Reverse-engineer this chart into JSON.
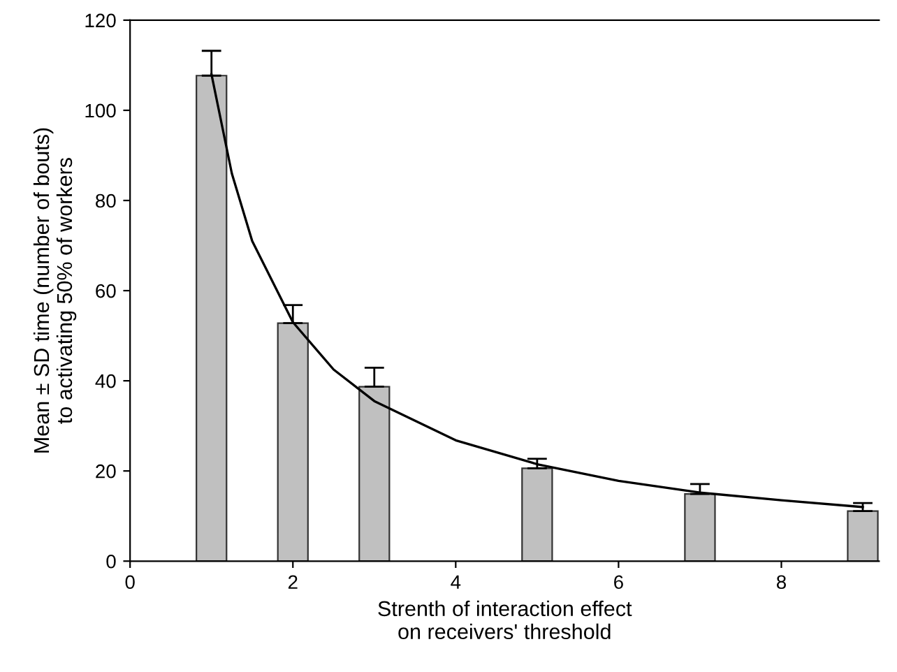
{
  "chart_data": {
    "type": "bar",
    "xlabel": "Strenth of interaction effect\non receivers' threshold",
    "ylabel": "Mean ± SD time (number of bouts)\nto activating 50% of workers",
    "x": [
      1,
      2,
      3,
      5,
      7,
      9
    ],
    "series": [
      {
        "color": "#c0c0c0",
        "values": [
          107.7,
          52.8,
          38.7,
          20.6,
          14.9,
          11.1
        ],
        "errors": [
          [
            107.7,
            113.2
          ],
          [
            52.8,
            56.8
          ],
          [
            38.7,
            42.9
          ],
          [
            20.6,
            22.7
          ],
          [
            14.9,
            17.1
          ],
          [
            11.1,
            12.9
          ]
        ]
      },
      {
        "type": "line",
        "color": "#000000",
        "x": [
          1,
          1.25,
          1.5,
          2,
          2.5,
          3,
          4,
          5,
          6,
          7,
          8,
          9
        ],
        "values": [
          108,
          86,
          71,
          53,
          42.5,
          35.5,
          26.8,
          21.5,
          17.8,
          15.2,
          13.5,
          12.0
        ]
      }
    ],
    "xlim": [
      0,
      9.2
    ],
    "xticks": [
      0,
      2,
      4,
      6,
      8
    ],
    "ylim": [
      0,
      120
    ],
    "yticks": [
      0,
      20,
      40,
      60,
      80,
      100,
      120
    ],
    "grid": false,
    "legend": false
  }
}
